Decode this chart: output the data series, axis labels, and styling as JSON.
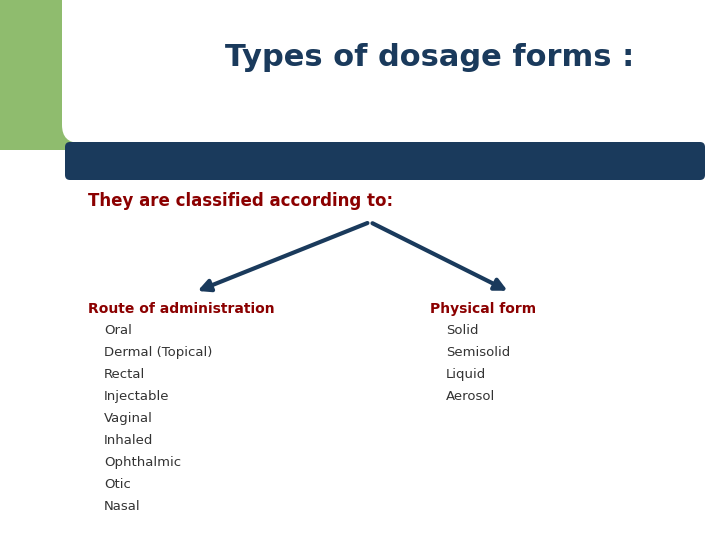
{
  "title": "Types of dosage forms :",
  "title_color": "#1a3a5c",
  "title_fontsize": 22,
  "background_color": "#ffffff",
  "green_rect_color": "#8fbc6e",
  "bar_color": "#1a3a5c",
  "classified_text": "They are classified according to:",
  "classified_color": "#8b0000",
  "classified_fontsize": 12,
  "arrow_color": "#1a3a5c",
  "left_header": "Route of administration",
  "left_items": [
    "Oral",
    "Dermal (Topical)",
    "Rectal",
    "Injectable",
    "Vaginal",
    "Inhaled",
    "Ophthalmic",
    "Otic",
    "Nasal"
  ],
  "right_header": "Physical form",
  "right_items": [
    "Solid",
    "Semisolid",
    "Liquid",
    "Aerosol"
  ],
  "header_color": "#8b0000",
  "item_color": "#333333",
  "header_fontsize": 10,
  "item_fontsize": 9.5,
  "arrow_lw": 3.0,
  "arrow_mutation_scale": 18
}
